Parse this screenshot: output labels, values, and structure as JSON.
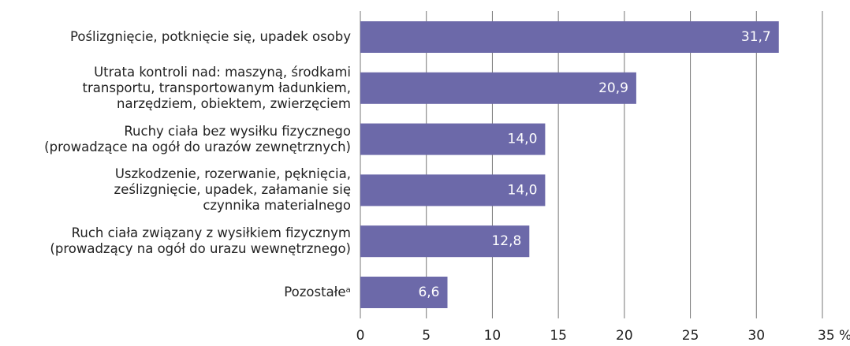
{
  "chart_data": {
    "type": "bar",
    "orientation": "horizontal",
    "categories": [
      "Poślizgnięcie, potknięcie się, upadek osoby",
      "Utrata kontroli nad: maszyną, środkami\ntransportu, transportowanym ładunkiem,\nnarzędziem, obiektem, zwierzęciem",
      "Ruchy ciała bez wysiłku fizycznego\n(prowadzące na ogół do urazów zewnętrznych)",
      "Uszkodzenie, rozerwanie, pęknięcia,\nześlizgnięcie, upadek, załamanie się\nczynnika materialnego",
      "Ruch ciała związany z wysiłkiem fizycznym\n(prowadzący na ogół do urazu wewnętrznego)",
      "Pozostałeᵃ"
    ],
    "values": [
      31.7,
      20.9,
      14.0,
      14.0,
      12.8,
      6.6
    ],
    "value_labels": [
      "31,7",
      "20,9",
      "14,0",
      "14,0",
      "12,8",
      "6,6"
    ],
    "color": "#6c69a9",
    "xlim": [
      0,
      35
    ],
    "xticks": [
      0,
      5,
      10,
      15,
      20,
      25,
      30,
      {
        "value": 35,
        "label": "35 %"
      }
    ],
    "grid": true
  }
}
